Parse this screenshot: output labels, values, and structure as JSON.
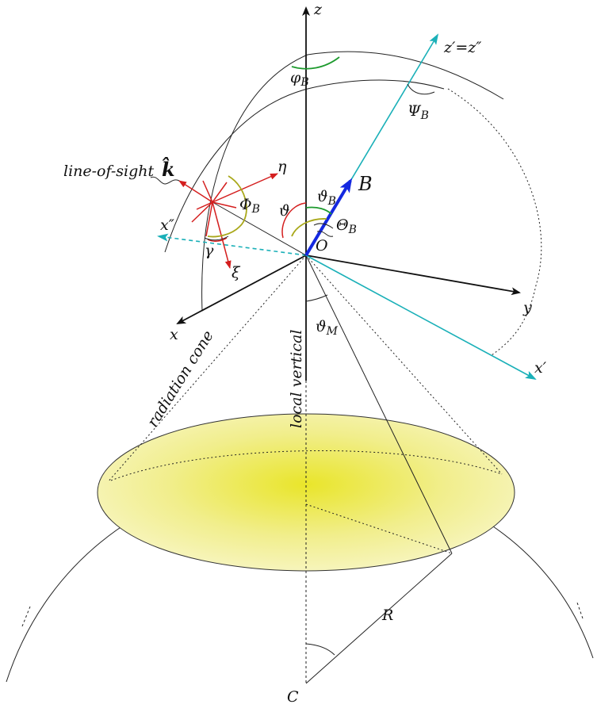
{
  "labels": {
    "z": "z",
    "z_prime": "z′=z″",
    "x": "x",
    "y": "y",
    "x_prime": "x′",
    "x_double_prime": "x″",
    "origin": "O",
    "center": "C",
    "B": "B",
    "R": "R",
    "k_hat": "k̂",
    "line_of_sight": "line-of-sight",
    "eta": "η",
    "xi": "ξ",
    "gamma": "γ",
    "theta": "ϑ",
    "theta_B": "ϑ",
    "theta_B_sub": "B",
    "Theta_B": "Θ",
    "Theta_B_sub": "B",
    "Phi_B": "Φ",
    "Phi_B_sub": "B",
    "phi_B": "φ",
    "phi_B_sub": "B",
    "Psi_B": "Ψ",
    "Psi_B_sub": "B",
    "theta_M": "ϑ",
    "theta_M_sub": "M",
    "local_vertical": "local  vertical",
    "radiation_cone": "radiation cone"
  },
  "colors": {
    "axis": "#111111",
    "rotated_axes": "#1ab0b8",
    "B_vector": "#1428e0",
    "line_of_sight_frame": "#d41f1f",
    "phi_arc": "#1d9a2e",
    "Theta_arc": "#a9a81a",
    "illuminated_disk": "#f2ee6a"
  }
}
